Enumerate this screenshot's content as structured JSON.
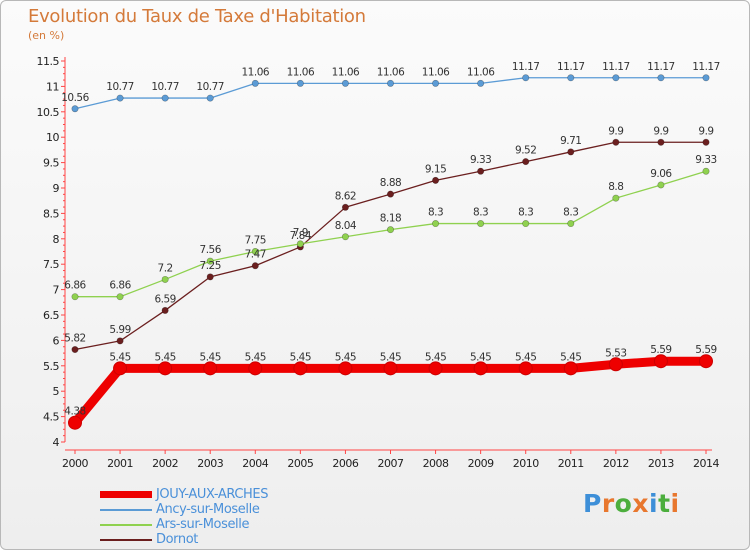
{
  "header": {
    "title": "Evolution du Taux de Taxe d'Habitation",
    "subtitle": "(en %)"
  },
  "brand": {
    "letters": [
      "P",
      "r",
      "o",
      "x",
      "i",
      "t",
      "i"
    ],
    "colors": [
      "#3d8fd8",
      "#e8772e",
      "#4cae3d",
      "#e8772e",
      "#3d8fd8",
      "#4cae3d",
      "#e8772e"
    ]
  },
  "chart_data": {
    "type": "line",
    "title": "Evolution du Taux de Taxe d'Habitation",
    "ylabel": "(en %)",
    "xlabel": "",
    "ylim": [
      4,
      11.5
    ],
    "yticks": [
      4,
      4.5,
      5,
      5.5,
      6,
      6.5,
      7,
      7.5,
      8,
      8.5,
      9,
      9.5,
      10,
      10.5,
      11,
      11.5
    ],
    "grid": false,
    "legend_position": "bottom-left",
    "categories": [
      "2000",
      "2001",
      "2002",
      "2003",
      "2004",
      "2005",
      "2006",
      "2007",
      "2008",
      "2009",
      "2010",
      "2011",
      "2012",
      "2013",
      "2014"
    ],
    "series": [
      {
        "name": "JOUY-AUX-ARCHES",
        "color": "#ee0000",
        "values": [
          4.38,
          5.45,
          5.45,
          5.45,
          5.45,
          5.45,
          5.45,
          5.45,
          5.45,
          5.45,
          5.45,
          5.45,
          5.53,
          5.59,
          5.59
        ]
      },
      {
        "name": "Ancy-sur-Moselle",
        "color": "#5b9bd5",
        "values": [
          10.56,
          10.77,
          10.77,
          10.77,
          11.06,
          11.06,
          11.06,
          11.06,
          11.06,
          11.06,
          11.17,
          11.17,
          11.17,
          11.17,
          11.17
        ]
      },
      {
        "name": "Ars-sur-Moselle",
        "color": "#8fd14f",
        "values": [
          6.86,
          6.86,
          7.2,
          7.56,
          7.75,
          7.9,
          8.04,
          8.18,
          8.3,
          8.3,
          8.3,
          8.3,
          8.8,
          9.06,
          9.33
        ]
      },
      {
        "name": "Dornot",
        "color": "#6b1f1f",
        "values": [
          5.82,
          5.99,
          6.59,
          7.25,
          7.47,
          7.84,
          8.62,
          8.88,
          9.15,
          9.33,
          9.52,
          9.71,
          9.9,
          9.9,
          9.9
        ]
      }
    ]
  }
}
